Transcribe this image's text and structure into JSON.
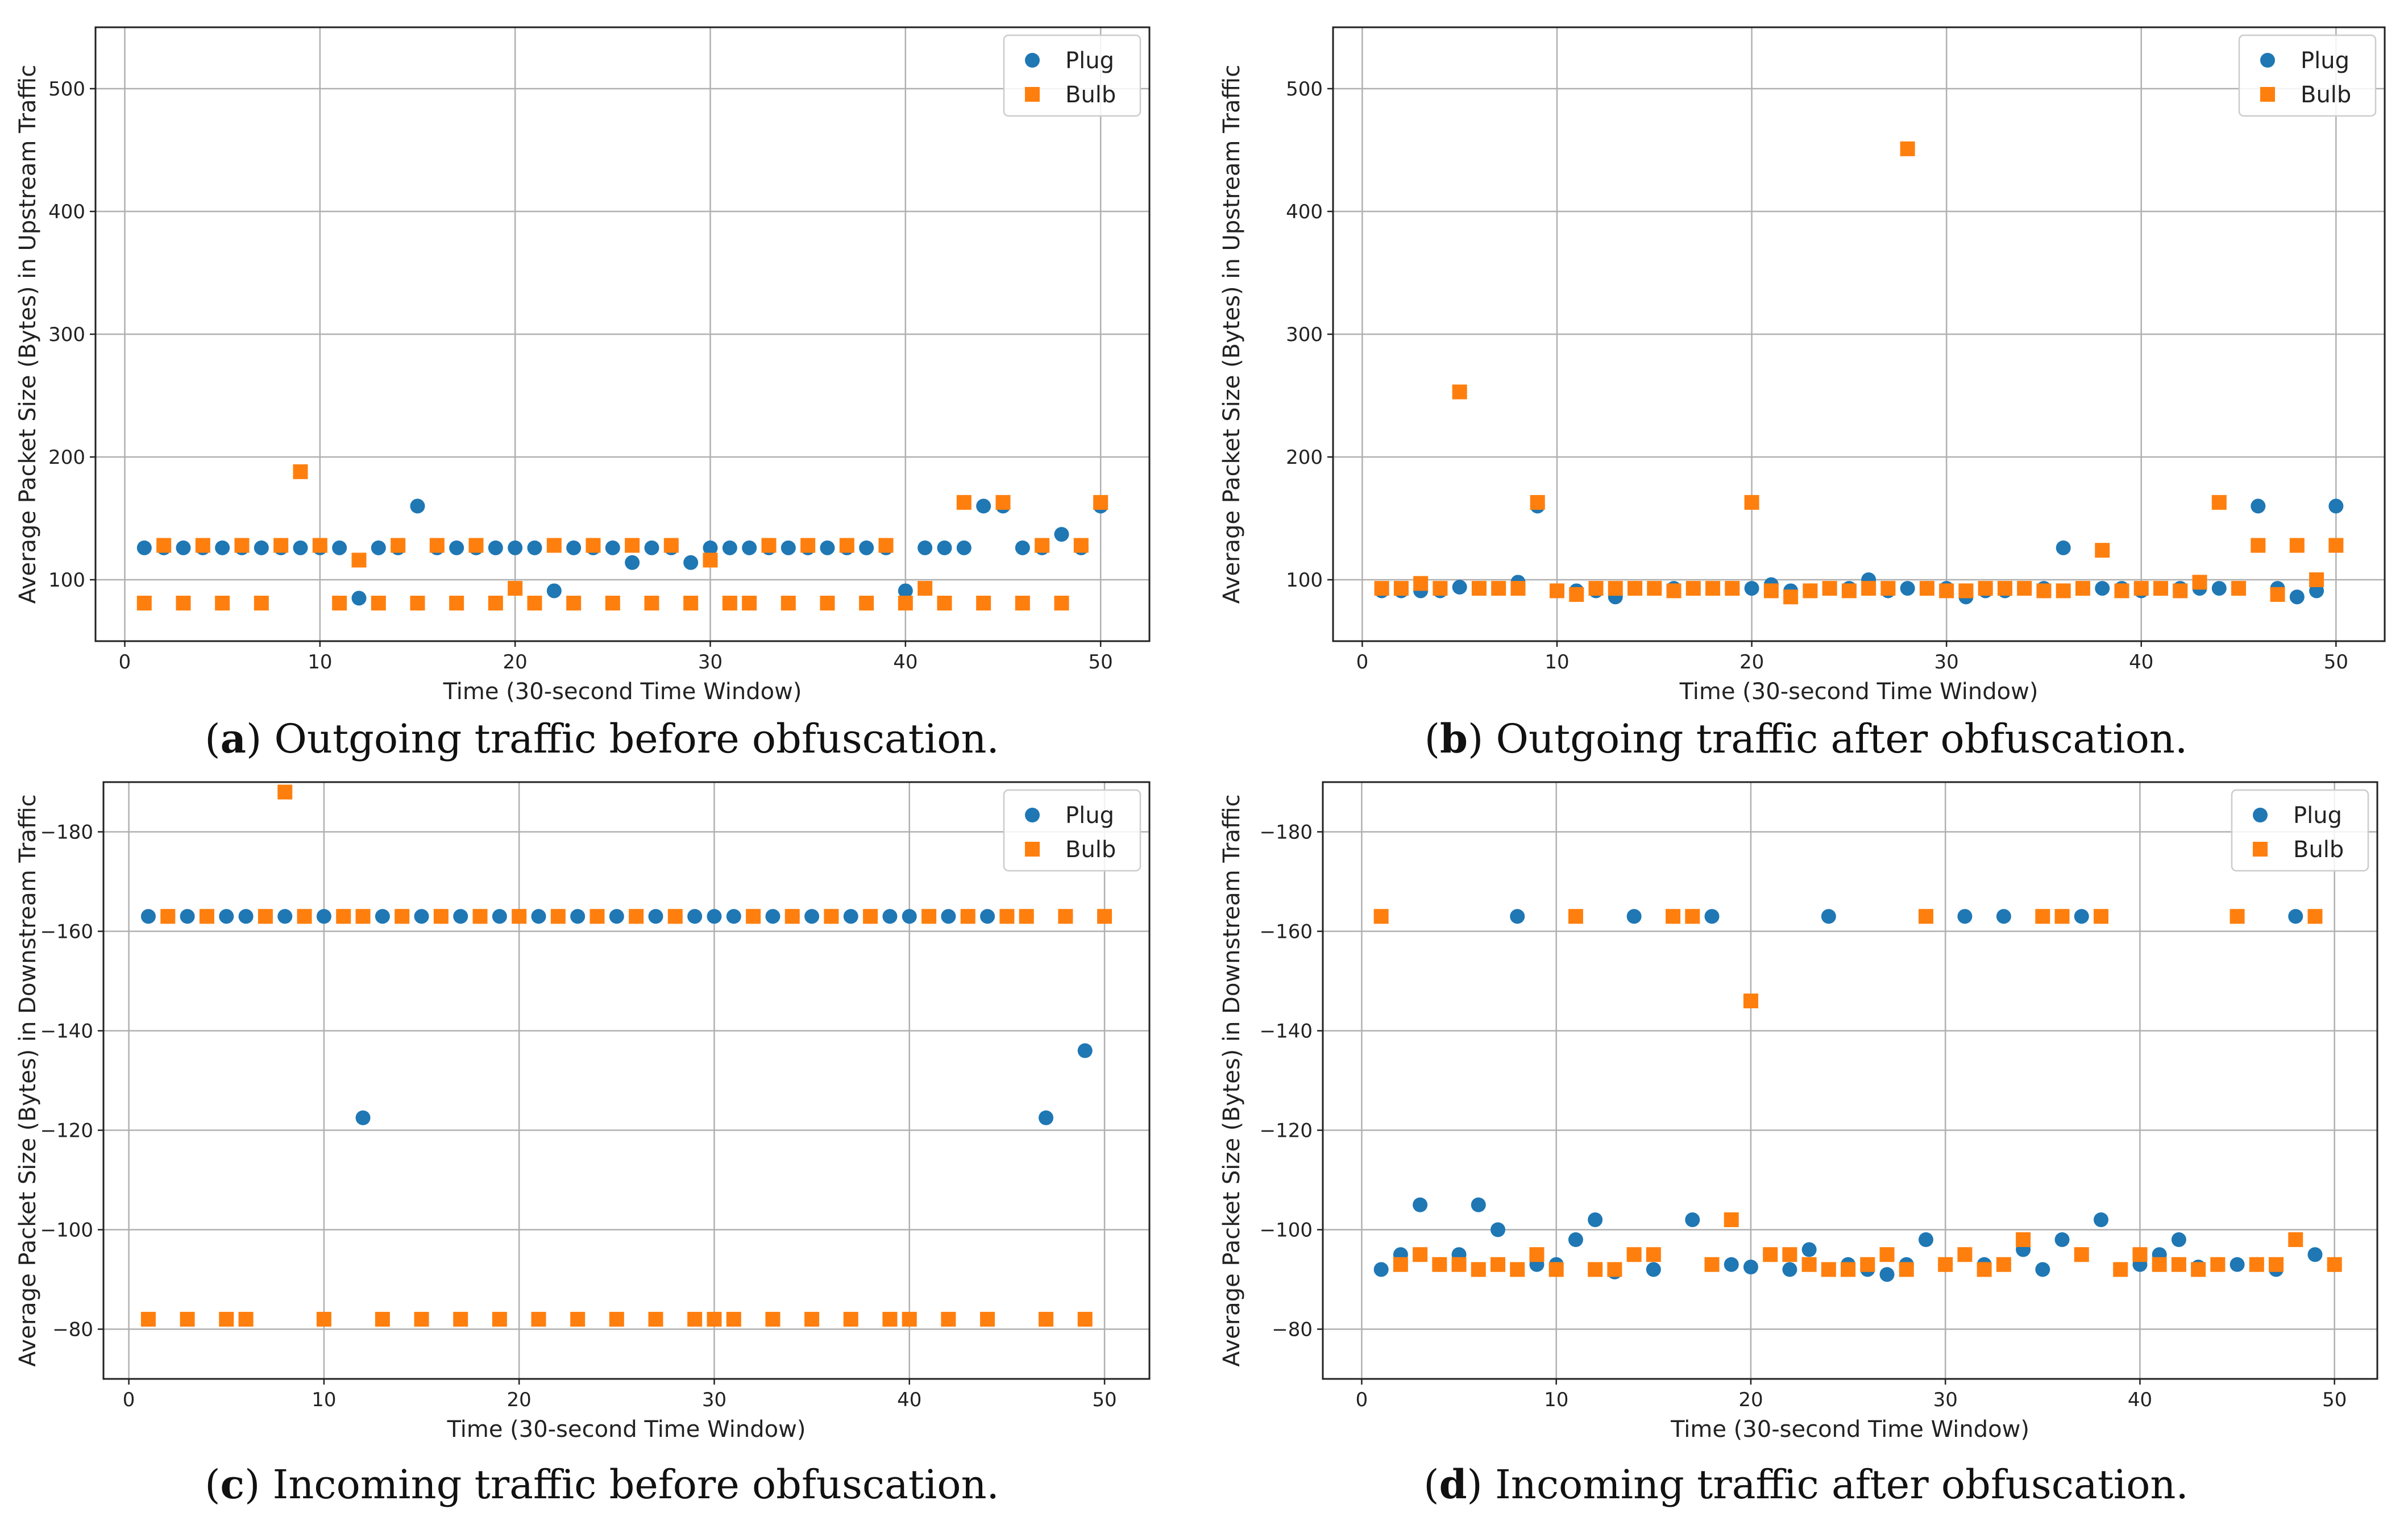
{
  "series_colors": {
    "Plug": "#1f77b4",
    "Bulb": "#ff7f0e"
  },
  "chart_data": [
    {
      "panel": "a",
      "type": "scatter",
      "caption_letter": "a",
      "caption_text": ") Outgoing traffic before obfuscation.",
      "xlabel": "Time (30-second Time Window)",
      "ylabel": "Average Packet Size (Bytes) in Upstream Traffic",
      "xlim": [
        -1.5,
        52.5
      ],
      "ylim": [
        50,
        550
      ],
      "xticks": [
        0,
        10,
        20,
        30,
        40,
        50
      ],
      "yticks": [
        100,
        200,
        300,
        400,
        500
      ],
      "ytick_labels": [
        "100",
        "200",
        "300",
        "400",
        "500"
      ],
      "grid": true,
      "legend": "top-right",
      "series": [
        {
          "name": "Plug",
          "marker": "circle",
          "x": [
            1,
            2,
            3,
            4,
            5,
            6,
            7,
            8,
            9,
            10,
            11,
            12,
            13,
            14,
            15,
            16,
            17,
            18,
            19,
            20,
            21,
            22,
            23,
            24,
            25,
            26,
            27,
            28,
            29,
            30,
            31,
            32,
            33,
            34,
            35,
            36,
            37,
            38,
            39,
            40,
            41,
            42,
            43,
            44,
            45,
            46,
            47,
            48,
            49,
            50
          ],
          "y": [
            126,
            126,
            126,
            126,
            126,
            126,
            126,
            126,
            126,
            126,
            126,
            85,
            126,
            126,
            160,
            126,
            126,
            126,
            126,
            126,
            126,
            91,
            126,
            126,
            126,
            114,
            126,
            126,
            114,
            126,
            126,
            126,
            126,
            126,
            126,
            126,
            126,
            126,
            126,
            91,
            126,
            126,
            126,
            160,
            160,
            126,
            126,
            137,
            126,
            160
          ]
        },
        {
          "name": "Bulb",
          "marker": "square",
          "x": [
            1,
            2,
            3,
            4,
            5,
            6,
            7,
            8,
            9,
            10,
            11,
            12,
            13,
            14,
            15,
            16,
            17,
            18,
            19,
            20,
            21,
            22,
            23,
            24,
            25,
            26,
            27,
            28,
            29,
            30,
            31,
            32,
            33,
            34,
            35,
            36,
            37,
            38,
            39,
            40,
            41,
            42,
            43,
            44,
            45,
            46,
            47,
            48,
            49,
            50
          ],
          "y": [
            81,
            128,
            81,
            128,
            81,
            128,
            81,
            128,
            188,
            128,
            81,
            116,
            81,
            128,
            81,
            128,
            81,
            128,
            81,
            93,
            81,
            128,
            81,
            128,
            81,
            128,
            81,
            128,
            81,
            116,
            81,
            81,
            128,
            81,
            128,
            81,
            128,
            81,
            128,
            81,
            93,
            81,
            163,
            81,
            163,
            81,
            128,
            81,
            128,
            163
          ]
        }
      ]
    },
    {
      "panel": "b",
      "type": "scatter",
      "caption_letter": "b",
      "caption_text": ") Outgoing traffic after obfuscation.",
      "xlabel": "Time (30-second Time Window)",
      "ylabel": "Average Packet Size (Bytes) in Upstream Traffic",
      "xlim": [
        -1.5,
        52.5
      ],
      "ylim": [
        50,
        550
      ],
      "xticks": [
        0,
        10,
        20,
        30,
        40,
        50
      ],
      "yticks": [
        100,
        200,
        300,
        400,
        500
      ],
      "ytick_labels": [
        "100",
        "200",
        "300",
        "400",
        "500"
      ],
      "grid": true,
      "legend": "top-right",
      "series": [
        {
          "name": "Plug",
          "marker": "circle",
          "x": [
            1,
            2,
            3,
            4,
            5,
            6,
            7,
            8,
            9,
            10,
            11,
            12,
            13,
            14,
            15,
            16,
            17,
            18,
            19,
            20,
            21,
            22,
            23,
            24,
            25,
            26,
            27,
            28,
            29,
            30,
            31,
            32,
            33,
            34,
            35,
            36,
            37,
            38,
            39,
            40,
            41,
            42,
            43,
            44,
            45,
            46,
            47,
            48,
            49,
            50
          ],
          "y": [
            91,
            91,
            91,
            91,
            94,
            93,
            93,
            98,
            160,
            91,
            91,
            91,
            86,
            93,
            93,
            93,
            93,
            93,
            93,
            93,
            96,
            91,
            91,
            93,
            93,
            100,
            91,
            93,
            93,
            93,
            86,
            91,
            91,
            93,
            93,
            126,
            93,
            93,
            93,
            91,
            93,
            93,
            93,
            93,
            93,
            160,
            93,
            86,
            91,
            160
          ]
        },
        {
          "name": "Bulb",
          "marker": "square",
          "x": [
            1,
            2,
            3,
            4,
            5,
            6,
            7,
            8,
            9,
            10,
            11,
            12,
            13,
            14,
            15,
            16,
            17,
            18,
            19,
            20,
            21,
            22,
            23,
            24,
            25,
            26,
            27,
            28,
            29,
            30,
            31,
            32,
            33,
            34,
            35,
            36,
            37,
            38,
            39,
            40,
            41,
            42,
            43,
            44,
            45,
            46,
            47,
            48,
            49,
            50
          ],
          "y": [
            93,
            93,
            97,
            93,
            253,
            93,
            93,
            93,
            163,
            91,
            88,
            93,
            93,
            93,
            93,
            91,
            93,
            93,
            93,
            163,
            91,
            86,
            91,
            93,
            91,
            93,
            93,
            451,
            93,
            91,
            91,
            93,
            93,
            93,
            91,
            91,
            93,
            124,
            91,
            93,
            93,
            91,
            98,
            163,
            93,
            128,
            88,
            128,
            100,
            128
          ]
        }
      ]
    },
    {
      "panel": "c",
      "type": "scatter",
      "caption_letter": "c",
      "caption_text": ") Incoming traffic before obfuscation.",
      "xlabel": "Time (30-second Time Window)",
      "ylabel": "Average Packet Size (Bytes) in Downstream Traffic",
      "xlim": [
        -1.3,
        52.3
      ],
      "ylim": [
        -70,
        -190
      ],
      "xticks": [
        0,
        10,
        20,
        30,
        40,
        50
      ],
      "yticks": [
        -80,
        -100,
        -120,
        -140,
        -160,
        -180
      ],
      "ytick_labels": [
        "−80",
        "−100",
        "−120",
        "−140",
        "−160",
        "−180"
      ],
      "grid": true,
      "legend": "top-right",
      "series": [
        {
          "name": "Plug",
          "marker": "circle",
          "x": [
            1,
            2,
            3,
            4,
            5,
            6,
            7,
            8,
            9,
            10,
            11,
            12,
            13,
            14,
            15,
            16,
            17,
            18,
            19,
            20,
            21,
            22,
            23,
            24,
            25,
            26,
            27,
            28,
            29,
            30,
            31,
            32,
            33,
            34,
            35,
            36,
            37,
            38,
            39,
            40,
            41,
            42,
            43,
            44,
            45,
            46,
            47,
            48,
            49,
            50
          ],
          "y": [
            -163,
            -163,
            -163,
            -163,
            -163,
            -163,
            -163,
            -163,
            -163,
            -163,
            -163,
            -122.5,
            -163,
            -163,
            -163,
            -163,
            -163,
            -163,
            -163,
            -163,
            -163,
            -163,
            -163,
            -163,
            -163,
            -163,
            -163,
            -163,
            -163,
            -163,
            -163,
            -163,
            -163,
            -163,
            -163,
            -163,
            -163,
            -163,
            -163,
            -163,
            -163,
            -163,
            -163,
            -163,
            -163,
            -163,
            -122.5,
            -163,
            -136,
            -163
          ]
        },
        {
          "name": "Bulb",
          "marker": "square",
          "x": [
            1,
            2,
            3,
            4,
            5,
            6,
            7,
            8,
            9,
            10,
            11,
            12,
            13,
            14,
            15,
            16,
            17,
            18,
            19,
            20,
            21,
            22,
            23,
            24,
            25,
            26,
            27,
            28,
            29,
            30,
            31,
            32,
            33,
            34,
            35,
            36,
            37,
            38,
            39,
            40,
            41,
            42,
            43,
            44,
            45,
            46,
            47,
            48,
            49,
            50
          ],
          "y": [
            -82,
            -163,
            -82,
            -163,
            -82,
            -82,
            -163,
            -188,
            -163,
            -82,
            -163,
            -163,
            -82,
            -163,
            -82,
            -163,
            -82,
            -163,
            -82,
            -163,
            -82,
            -163,
            -82,
            -163,
            -82,
            -163,
            -82,
            -163,
            -82,
            -82,
            -82,
            -163,
            -82,
            -163,
            -82,
            -163,
            -82,
            -163,
            -82,
            -82,
            -163,
            -82,
            -163,
            -82,
            -163,
            -163,
            -82,
            -163,
            -82,
            -163
          ]
        }
      ]
    },
    {
      "panel": "d",
      "type": "scatter",
      "caption_letter": "d",
      "caption_text": ") Incoming traffic after obfuscation.",
      "xlabel": "Time (30-second Time Window)",
      "ylabel": "Average Packet Size (Bytes) in Downstream Traffic",
      "xlim": [
        -2,
        52.2
      ],
      "ylim": [
        -70,
        -190
      ],
      "xticks": [
        0,
        10,
        20,
        30,
        40,
        50
      ],
      "yticks": [
        -80,
        -100,
        -120,
        -140,
        -160,
        -180
      ],
      "ytick_labels": [
        "−80",
        "−100",
        "−120",
        "−140",
        "−160",
        "−180"
      ],
      "grid": true,
      "legend": "top-right",
      "series": [
        {
          "name": "Plug",
          "marker": "circle",
          "x": [
            1,
            2,
            3,
            4,
            5,
            6,
            7,
            8,
            9,
            10,
            11,
            12,
            13,
            14,
            15,
            16,
            17,
            18,
            19,
            20,
            21,
            22,
            23,
            24,
            25,
            26,
            27,
            28,
            29,
            30,
            31,
            32,
            33,
            34,
            35,
            36,
            37,
            38,
            39,
            40,
            41,
            42,
            43,
            44,
            45,
            46,
            47,
            48,
            49,
            50
          ],
          "y": [
            -92,
            -95,
            -105,
            -93,
            -95,
            -105,
            -100,
            -163,
            -93,
            -93,
            -98,
            -102,
            -91.5,
            -163,
            -92,
            -163,
            -102,
            -163,
            -93,
            -92.5,
            -95,
            -92,
            -96,
            -163,
            -93,
            -92,
            -91,
            -93,
            -98,
            -93,
            -163,
            -93,
            -163,
            -96,
            -92,
            -98,
            -163,
            -102,
            -92,
            -93,
            -95,
            -98,
            -92.5,
            -93,
            -93,
            -93,
            -92,
            -163,
            -95,
            -93
          ]
        },
        {
          "name": "Bulb",
          "marker": "square",
          "x": [
            1,
            2,
            3,
            4,
            5,
            6,
            7,
            8,
            9,
            10,
            11,
            12,
            13,
            14,
            15,
            16,
            17,
            18,
            19,
            20,
            21,
            22,
            23,
            24,
            25,
            26,
            27,
            28,
            29,
            30,
            31,
            32,
            33,
            34,
            35,
            36,
            37,
            38,
            39,
            40,
            41,
            42,
            43,
            44,
            45,
            46,
            47,
            48,
            49,
            50
          ],
          "y": [
            -163,
            -93,
            -95,
            -93,
            -93,
            -92,
            -93,
            -92,
            -95,
            -92,
            -163,
            -92,
            -92,
            -95,
            -95,
            -163,
            -163,
            -93,
            -102,
            -146,
            -95,
            -95,
            -93,
            -92,
            -92,
            -93,
            -95,
            -92,
            -163,
            -93,
            -95,
            -92,
            -93,
            -98,
            -163,
            -163,
            -95,
            -163,
            -92,
            -95,
            -93,
            -93,
            -92,
            -93,
            -163,
            -93,
            -93,
            -98,
            -163,
            -93
          ]
        }
      ]
    }
  ]
}
